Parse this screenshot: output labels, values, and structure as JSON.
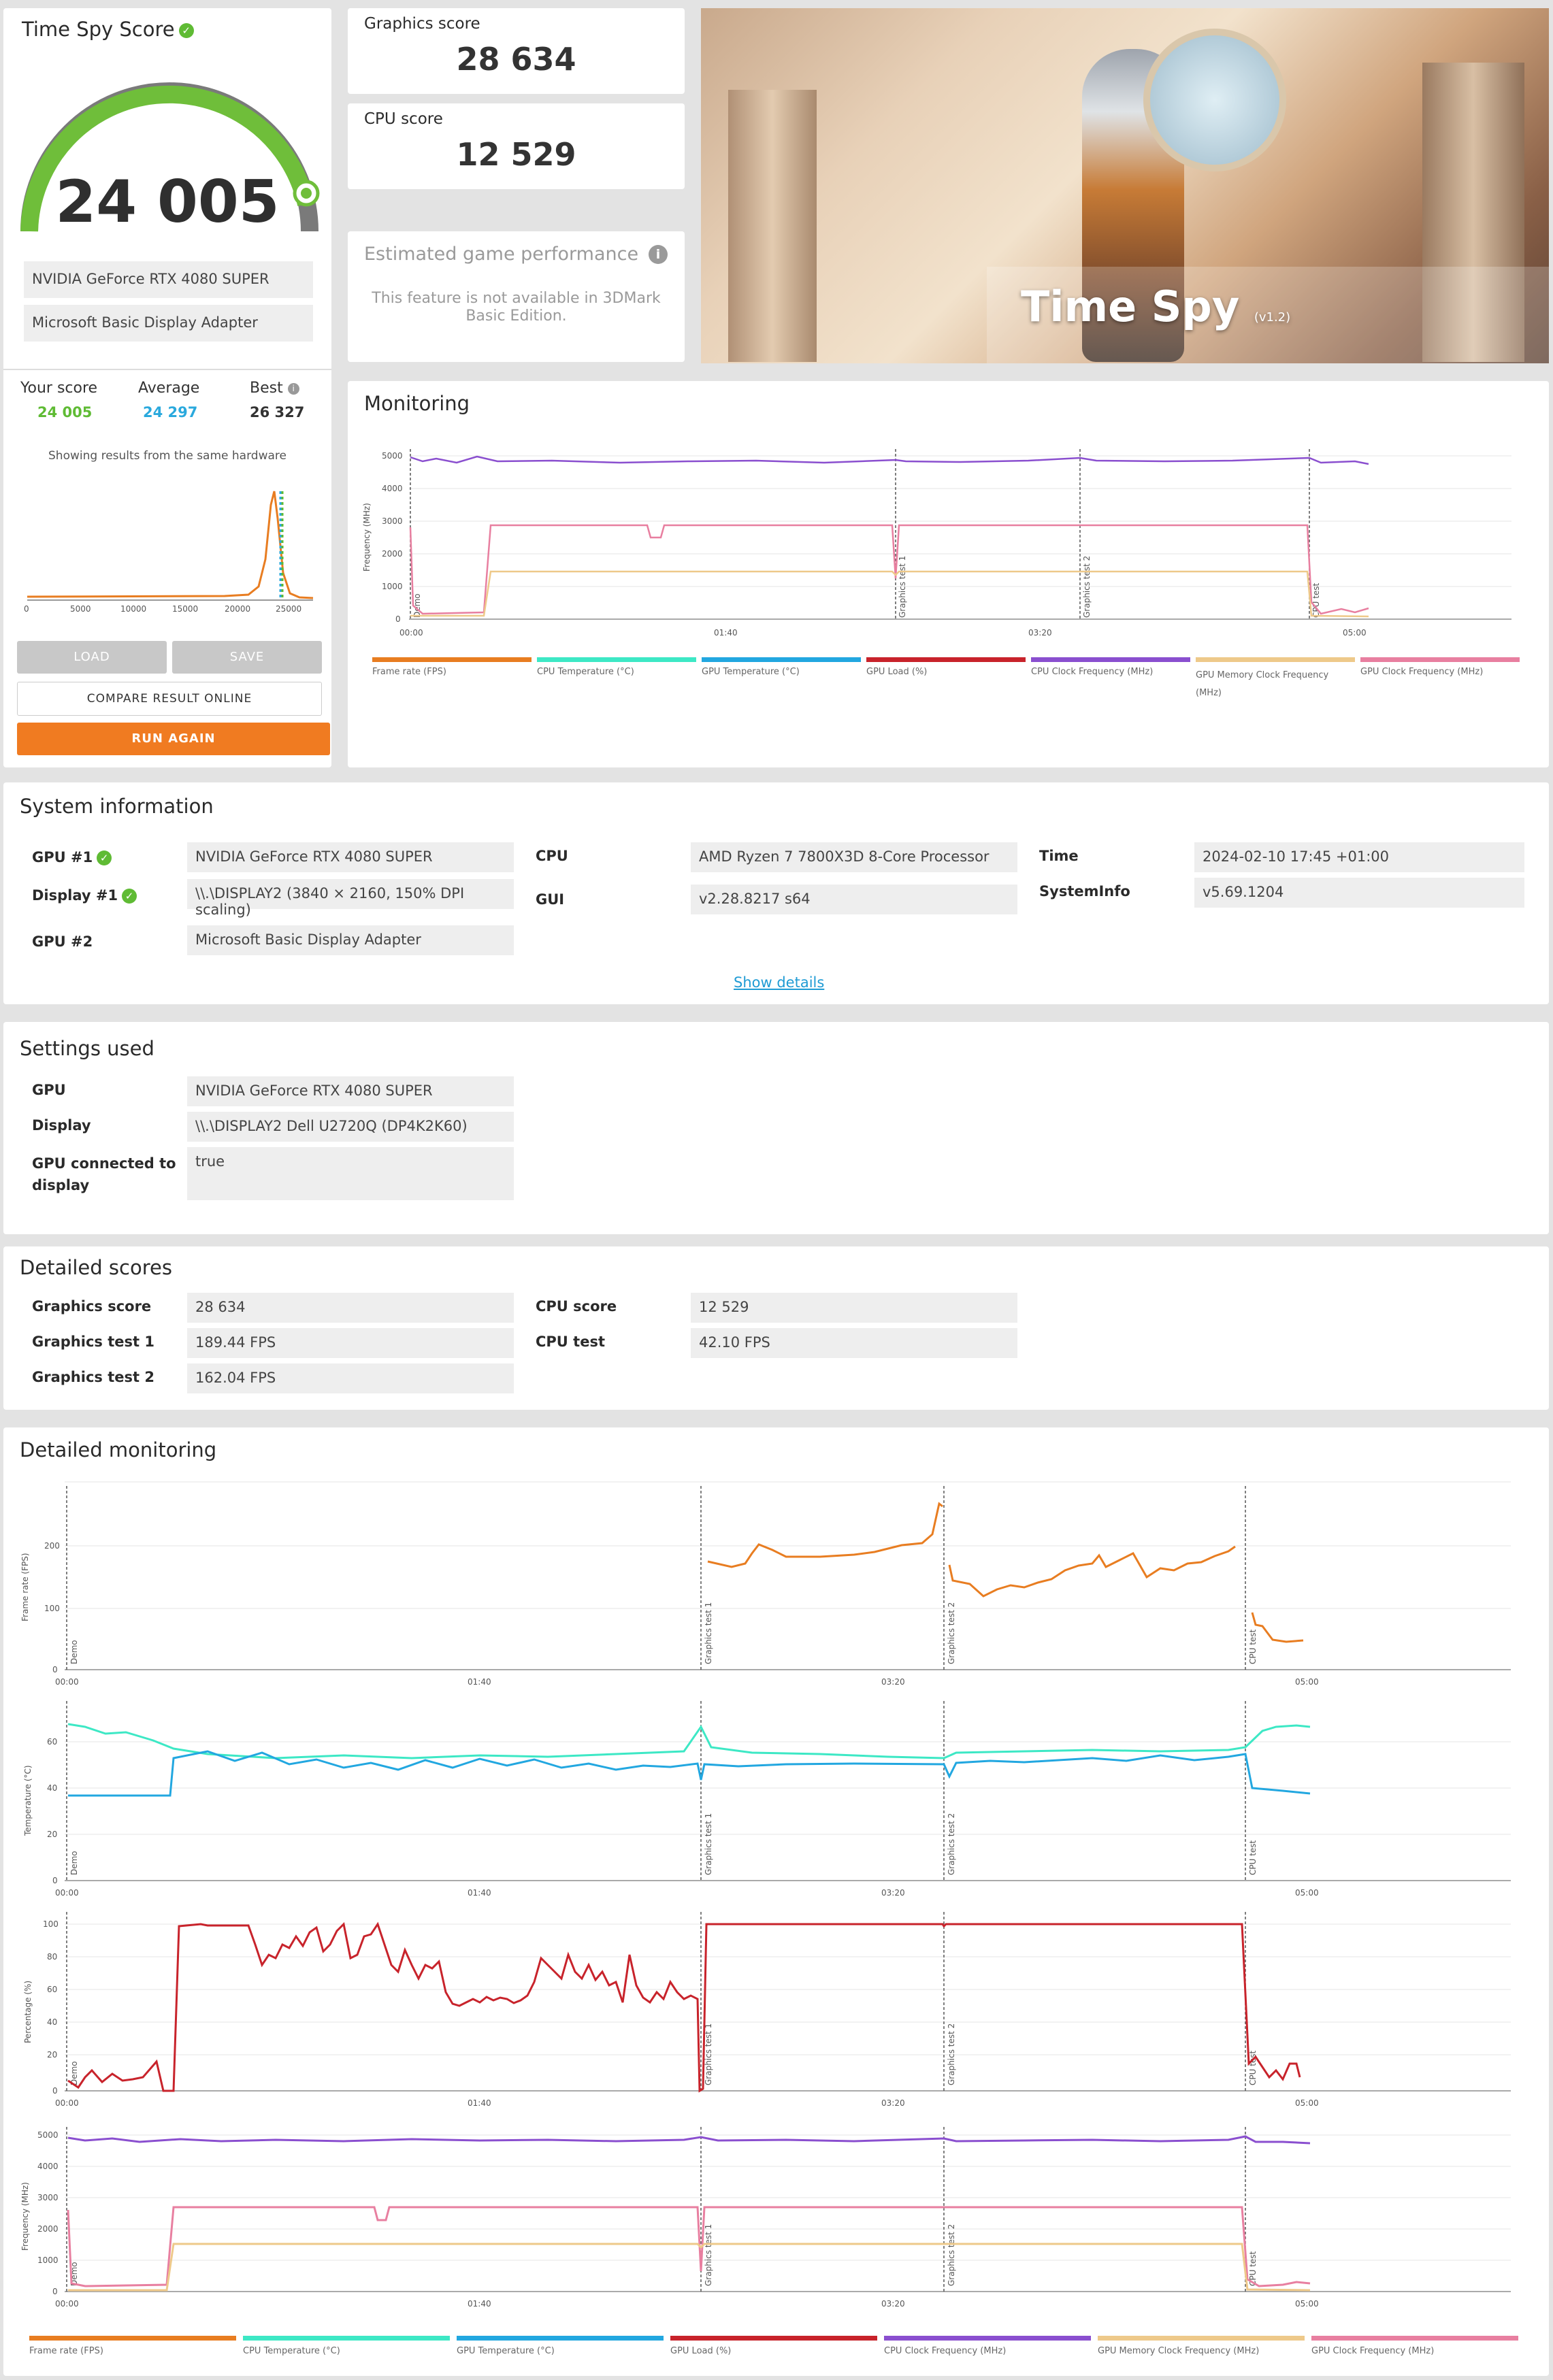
{
  "score_panel": {
    "title": "Time Spy Score",
    "score": "24 005",
    "gpu_name": "NVIDIA GeForce RTX 4080 SUPER",
    "adapter_name": "Microsoft Basic Display Adapter",
    "your_score_label": "Your score",
    "your_score": "24 005",
    "average_label": "Average",
    "average": "24 297",
    "best_label": "Best",
    "best": "26 327",
    "same_hw_note": "Showing results from the same hardware",
    "hist_ticks": [
      "0",
      "5000",
      "10000",
      "15000",
      "20000",
      "25000"
    ],
    "load_label": "LOAD",
    "save_label": "SAVE",
    "compare_label": "COMPARE RESULT ONLINE",
    "run_again_label": "RUN AGAIN"
  },
  "graphics_score": {
    "label": "Graphics score",
    "value": "28 634"
  },
  "cpu_score": {
    "label": "CPU score",
    "value": "12 529"
  },
  "estimated": {
    "title": "Estimated game performance",
    "note_line1": "This feature is not available in 3DMark",
    "note_line2": "Basic Edition."
  },
  "hero": {
    "title": "Time Spy",
    "version": "(v1.2)"
  },
  "monitoring": {
    "title": "Monitoring",
    "ylabel": "Frequency (MHz)",
    "yticks": [
      "5000",
      "4000",
      "3000",
      "2000",
      "1000",
      "0"
    ],
    "xticks": [
      "00:00",
      "01:40",
      "03:20",
      "05:00"
    ],
    "markers": [
      "Demo",
      "Graphics test 1",
      "Graphics test 2",
      "CPU test"
    ]
  },
  "legend": [
    {
      "name": "Frame rate (FPS)",
      "color": "#e87d21"
    },
    {
      "name": "CPU Temperature (°C)",
      "color": "#3de8c5"
    },
    {
      "name": "GPU Temperature (°C)",
      "color": "#22a7e0"
    },
    {
      "name": "GPU Load (%)",
      "color": "#c8232b"
    },
    {
      "name": "CPU Clock Frequency (MHz)",
      "color": "#8a4fcf"
    },
    {
      "name": "GPU Memory Clock Frequency (MHz)",
      "color": "#eec98a"
    },
    {
      "name": "GPU Clock Frequency (MHz)",
      "color": "#e87fa0"
    }
  ],
  "system_info": {
    "title": "System information",
    "gpu1_label": "GPU #1",
    "gpu1": "NVIDIA GeForce RTX 4080 SUPER",
    "display1_label": "Display #1",
    "display1": "\\\\.\\DISPLAY2 (3840 × 2160, 150% DPI scaling)",
    "gpu2_label": "GPU #2",
    "gpu2": "Microsoft Basic Display Adapter",
    "cpu_label": "CPU",
    "cpu": "AMD Ryzen 7 7800X3D 8-Core Processor",
    "gui_label": "GUI",
    "gui": "v2.28.8217 s64",
    "time_label": "Time",
    "time": "2024-02-10 17:45 +01:00",
    "sysinfo_label": "SystemInfo",
    "sysinfo": "v5.69.1204",
    "show_details": "Show details"
  },
  "settings": {
    "title": "Settings used",
    "gpu_label": "GPU",
    "gpu": "NVIDIA GeForce RTX 4080 SUPER",
    "display_label": "Display",
    "display": "\\\\.\\DISPLAY2 Dell U2720Q (DP4K2K60)",
    "connected_label_1": "GPU connected to",
    "connected_label_2": "display",
    "connected": "true"
  },
  "detailed_scores": {
    "title": "Detailed scores",
    "graphics_score_label": "Graphics score",
    "graphics_score": "28 634",
    "gt1_label": "Graphics test 1",
    "gt1": "189.44 FPS",
    "gt2_label": "Graphics test 2",
    "gt2": "162.04 FPS",
    "cpu_score_label": "CPU score",
    "cpu_score": "12 529",
    "cpu_test_label": "CPU test",
    "cpu_test": "42.10 FPS"
  },
  "detailed_monitoring": {
    "title": "Detailed monitoring",
    "xticks": [
      "00:00",
      "01:40",
      "03:20",
      "05:00"
    ],
    "markers": [
      "Demo",
      "Graphics test 1",
      "Graphics test 2",
      "CPU test"
    ],
    "charts": [
      {
        "ylabel": "Frame rate (FPS)",
        "yticks": [
          "200",
          "100",
          "0"
        ]
      },
      {
        "ylabel": "Temperature (°C)",
        "yticks": [
          "60",
          "40",
          "20",
          "0"
        ]
      },
      {
        "ylabel": "Percentage (%)",
        "yticks": [
          "100",
          "80",
          "60",
          "40",
          "20",
          "0"
        ]
      },
      {
        "ylabel": "Frequency (MHz)",
        "yticks": [
          "5000",
          "4000",
          "3000",
          "2000",
          "1000",
          "0"
        ]
      }
    ]
  }
}
